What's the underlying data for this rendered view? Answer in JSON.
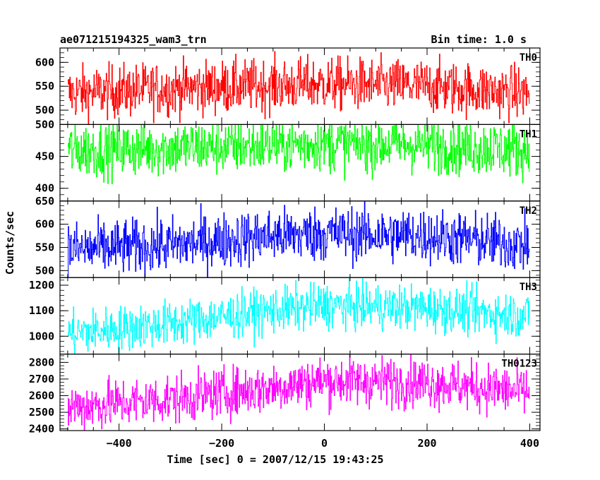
{
  "header": {
    "left_title": "ae071215194325_wam3_trn",
    "right_title": "Bin time: 1.0 s"
  },
  "chart_data": {
    "type": "line",
    "xlabel": "Time [sec] 0 = 2007/12/15 19:43:25",
    "ylabel": "Counts/sec",
    "xlim": [
      -515,
      420
    ],
    "x_ticks": [
      -400,
      -200,
      0,
      200,
      400
    ],
    "x_range_data": [
      -500,
      399
    ],
    "panels": [
      {
        "name": "TH0",
        "color": "#ff0000",
        "ylim": [
          470,
          630
        ],
        "y_ticks": [
          500,
          550,
          600
        ],
        "trend": [
          [
            -500,
            535
          ],
          [
            -300,
            545
          ],
          [
            0,
            555
          ],
          [
            200,
            550
          ],
          [
            399,
            535
          ]
        ],
        "noise": 28
      },
      {
        "name": "TH1",
        "color": "#00ff00",
        "ylim": [
          380,
          500
        ],
        "y_ticks": [
          400,
          450,
          500
        ],
        "trend": [
          [
            -500,
            460
          ],
          [
            -300,
            463
          ],
          [
            0,
            470
          ],
          [
            200,
            468
          ],
          [
            399,
            460
          ]
        ],
        "noise": 22
      },
      {
        "name": "TH2",
        "color": "#0000ff",
        "ylim": [
          485,
          650
        ],
        "y_ticks": [
          500,
          550,
          600,
          650
        ],
        "trend": [
          [
            -500,
            545
          ],
          [
            -300,
            555
          ],
          [
            -100,
            575
          ],
          [
            0,
            580
          ],
          [
            200,
            575
          ],
          [
            399,
            555
          ]
        ],
        "noise": 30
      },
      {
        "name": "TH3",
        "color": "#00ffff",
        "ylim": [
          930,
          1230
        ],
        "y_ticks": [
          1000,
          1100,
          1200
        ],
        "trend": [
          [
            -500,
            1010
          ],
          [
            -300,
            1050
          ],
          [
            -100,
            1100
          ],
          [
            0,
            1120
          ],
          [
            200,
            1110
          ],
          [
            399,
            1080
          ]
        ],
        "noise": 45
      },
      {
        "name": "TH0123",
        "color": "#ff00ff",
        "ylim": [
          2390,
          2850
        ],
        "y_ticks": [
          2400,
          2500,
          2600,
          2700,
          2800
        ],
        "trend": [
          [
            -500,
            2530
          ],
          [
            -300,
            2580
          ],
          [
            -100,
            2650
          ],
          [
            0,
            2690
          ],
          [
            200,
            2680
          ],
          [
            399,
            2620
          ]
        ],
        "noise": 75
      }
    ]
  }
}
